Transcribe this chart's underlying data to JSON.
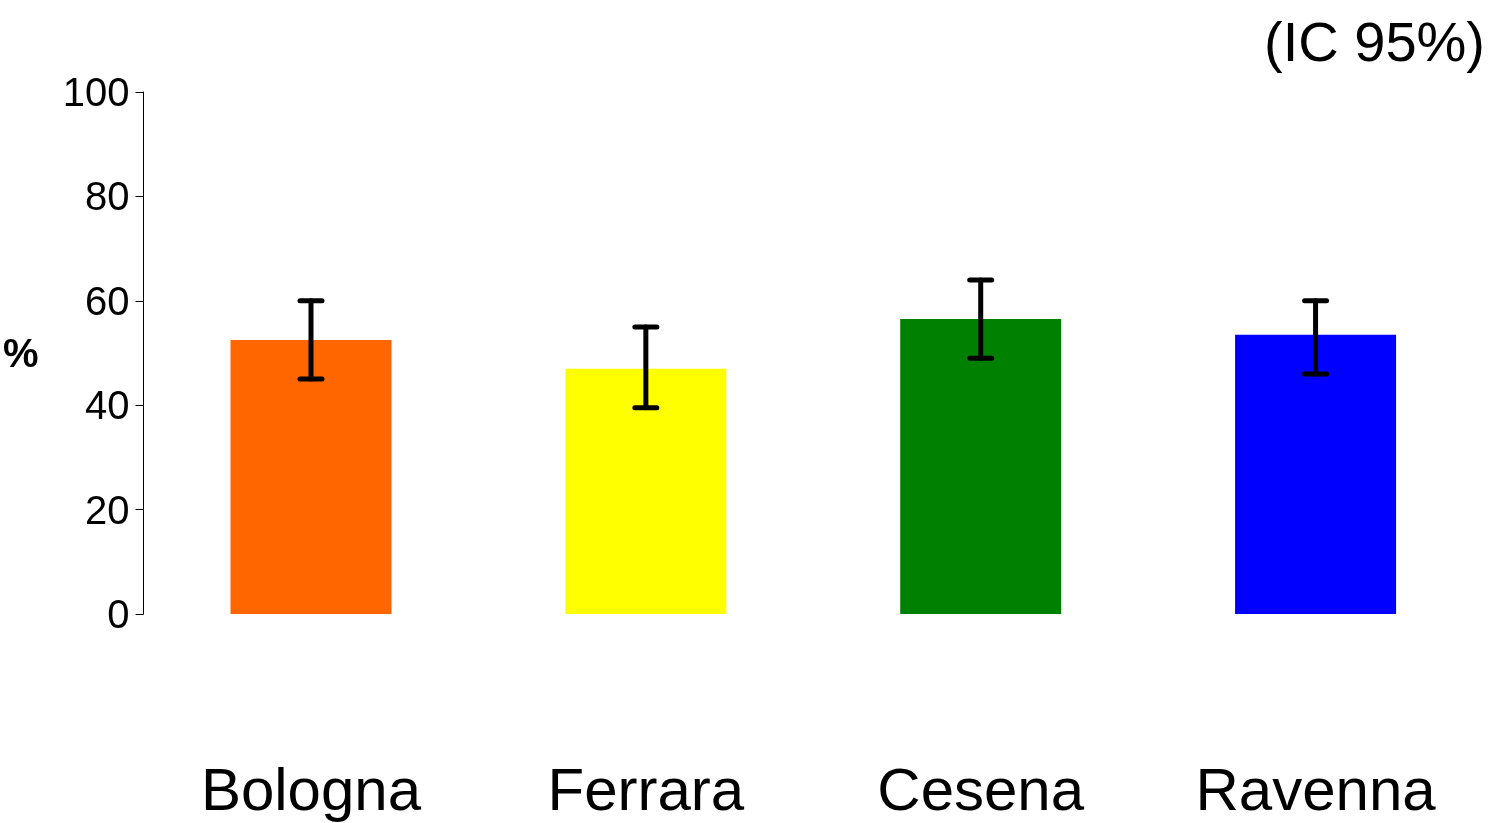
{
  "chart_data": {
    "type": "bar",
    "title": "(IC 95%)",
    "ylabel": "%",
    "categories": [
      "Bologna",
      "Ferrara",
      "Cesena",
      "Ravenna"
    ],
    "values": [
      52.5,
      47,
      56.5,
      53.5
    ],
    "colors": [
      "#ff6600",
      "#ffff00",
      "#008000",
      "#0000ff"
    ],
    "errors": [
      [
        45,
        60
      ],
      [
        39.5,
        55
      ],
      [
        49,
        64
      ],
      [
        46,
        60
      ]
    ],
    "ylim": [
      0,
      100
    ],
    "yticks": [
      0,
      20,
      40,
      60,
      80,
      100
    ],
    "grid": false
  }
}
